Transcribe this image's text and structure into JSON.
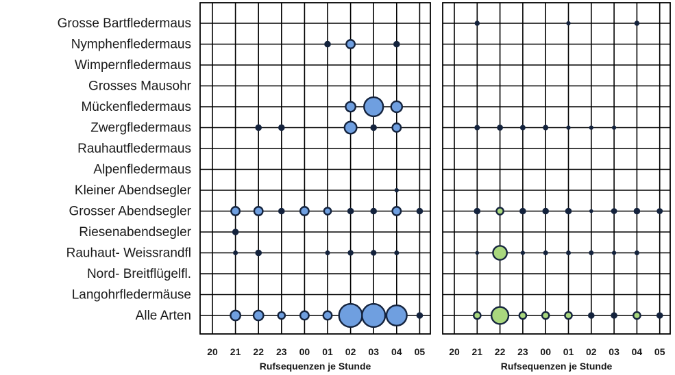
{
  "chart_data": {
    "type": "scatter",
    "categories_y": [
      "Grosse Bartfledermaus",
      "Nymphenfledermaus",
      "Wimpernfledermaus",
      "Grosses Mausohr",
      "Mückenfledermaus",
      "Zwergfledermaus",
      "Rauhautfledermaus",
      "Alpenfledermaus",
      "Kleiner Abendsegler",
      "Grosser Abendsegler",
      "Riesenabendsegler",
      "Rauhaut- Weissrandfl",
      "Nord- Breitflügelfl.",
      "Langohrfledermäuse",
      "Alle Arten"
    ],
    "panels": [
      {
        "x": [
          "20",
          "21",
          "22",
          "23",
          "00",
          "01",
          "02",
          "03",
          "04",
          "05"
        ],
        "xlabel": "Rufsequenzen je Stunde",
        "bubble_color": "#6f9fe0",
        "values": [
          [
            0,
            0,
            0,
            0,
            0,
            0,
            0,
            0,
            0,
            0
          ],
          [
            0,
            0,
            0,
            0,
            0,
            1,
            3,
            0,
            1,
            0
          ],
          [
            0,
            0,
            0,
            0,
            0,
            0,
            0,
            0,
            0,
            0
          ],
          [
            0,
            0,
            0,
            0,
            0,
            0,
            0,
            0,
            0,
            0
          ],
          [
            0,
            0,
            0,
            0,
            0,
            0,
            4,
            15,
            5,
            0
          ],
          [
            0,
            0,
            1,
            1,
            0,
            0,
            6,
            1,
            3,
            0
          ],
          [
            0,
            0,
            0,
            0,
            0,
            0,
            0,
            0,
            0,
            0
          ],
          [
            0,
            0,
            0,
            0,
            0,
            0,
            0,
            0,
            0,
            0
          ],
          [
            0,
            0,
            0,
            0,
            0,
            0,
            0,
            0,
            0.3,
            0
          ],
          [
            0,
            3,
            3,
            1,
            3,
            2,
            1,
            1,
            3,
            1
          ],
          [
            0,
            1,
            0,
            0,
            0,
            0,
            0,
            0,
            0,
            0
          ],
          [
            0,
            0.4,
            1,
            0,
            0,
            0.4,
            0.7,
            0.7,
            0.4,
            0
          ],
          [
            0,
            0,
            0,
            0,
            0,
            0,
            0,
            0,
            0,
            0
          ],
          [
            0,
            0,
            0,
            0,
            0,
            0,
            0,
            0,
            0,
            0
          ],
          [
            0,
            4,
            4,
            2,
            3,
            3,
            22,
            22,
            17,
            1
          ]
        ]
      },
      {
        "x": [
          "20",
          "21",
          "22",
          "23",
          "00",
          "01",
          "02",
          "03",
          "04",
          "05"
        ],
        "xlabel": "Rufsequenzen je Stunde",
        "bubble_color": "#a9d77e",
        "values": [
          [
            0,
            0.5,
            0,
            0,
            0,
            0.3,
            0,
            0,
            0.5,
            0
          ],
          [
            0,
            0,
            0,
            0,
            0,
            0,
            0,
            0,
            0,
            0
          ],
          [
            0,
            0,
            0,
            0,
            0,
            0,
            0,
            0,
            0,
            0
          ],
          [
            0,
            0,
            0,
            0,
            0,
            0,
            0,
            0,
            0,
            0
          ],
          [
            0,
            0,
            0,
            0,
            0,
            0,
            0,
            0,
            0,
            0
          ],
          [
            0,
            0.6,
            0.8,
            0.6,
            0.6,
            0.3,
            0.3,
            0.3,
            0,
            0
          ],
          [
            0,
            0,
            0,
            0,
            0,
            0,
            0,
            0,
            0,
            0
          ],
          [
            0,
            0,
            0,
            0,
            0,
            0,
            0,
            0,
            0,
            0
          ],
          [
            0,
            0,
            0,
            0,
            0,
            0,
            0,
            0,
            0,
            0
          ],
          [
            0,
            1,
            2,
            1,
            1,
            1,
            0.2,
            0.8,
            1,
            0.8
          ],
          [
            0,
            0,
            0,
            0,
            0,
            0,
            0,
            0,
            0,
            0
          ],
          [
            0,
            0.2,
            8,
            0.3,
            0.4,
            0.4,
            0.4,
            0.3,
            0.4,
            0
          ],
          [
            0,
            0,
            0,
            0,
            0,
            0,
            0,
            0,
            0,
            0
          ],
          [
            0,
            0,
            0,
            0,
            0,
            0,
            0,
            0,
            0,
            0
          ],
          [
            0,
            2,
            12,
            2,
            2,
            2,
            1,
            1,
            2,
            1
          ]
        ]
      }
    ]
  }
}
